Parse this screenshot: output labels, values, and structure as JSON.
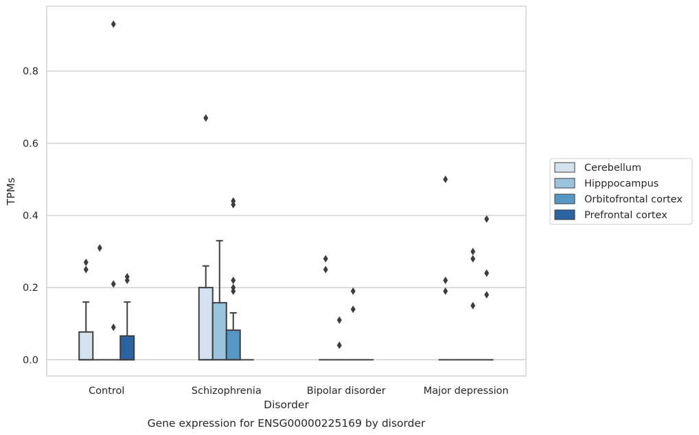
{
  "chart_data": {
    "type": "box",
    "title": "Gene expression for ENSG00000225169 by disorder",
    "xlabel": "Disorder",
    "ylabel": "TPMs",
    "categories": [
      "Control",
      "Schizophrenia",
      "Bipolar disorder",
      "Major depression"
    ],
    "ylim": [
      -0.045,
      0.98
    ],
    "yticks": [
      "0.0",
      "0.2",
      "0.4",
      "0.6",
      "0.8"
    ],
    "grid": "horizontal",
    "legend_position": "right",
    "series": [
      {
        "name": "Cerebellum",
        "color": "#d4e2f0",
        "boxes": [
          {
            "q1": 0.0,
            "median": 0.0,
            "q3": 0.077,
            "whisker_low": 0.0,
            "whisker_high": 0.16,
            "outliers": [
              0.27,
              0.25
            ]
          },
          {
            "q1": 0.0,
            "median": 0.0,
            "q3": 0.2,
            "whisker_low": 0.0,
            "whisker_high": 0.26,
            "outliers": [
              0.67
            ]
          },
          {
            "q1": 0.0,
            "median": 0.0,
            "q3": 0.0,
            "whisker_low": 0.0,
            "whisker_high": 0.0,
            "outliers": [
              0.28,
              0.25
            ]
          },
          {
            "q1": 0.0,
            "median": 0.0,
            "q3": 0.0,
            "whisker_low": 0.0,
            "whisker_high": 0.0,
            "outliers": [
              0.5,
              0.22,
              0.19
            ]
          }
        ]
      },
      {
        "name": "Hipppocampus",
        "color": "#9ac4dd",
        "boxes": [
          {
            "q1": 0.0,
            "median": 0.0,
            "q3": 0.0,
            "whisker_low": 0.0,
            "whisker_high": 0.0,
            "outliers": [
              0.31
            ]
          },
          {
            "q1": 0.0,
            "median": 0.0,
            "q3": 0.158,
            "whisker_low": 0.0,
            "whisker_high": 0.33,
            "outliers": []
          },
          {
            "q1": 0.0,
            "median": 0.0,
            "q3": 0.0,
            "whisker_low": 0.0,
            "whisker_high": 0.0,
            "outliers": [
              0.11,
              0.04
            ]
          },
          {
            "q1": 0.0,
            "median": 0.0,
            "q3": 0.0,
            "whisker_low": 0.0,
            "whisker_high": 0.0,
            "outliers": []
          }
        ]
      },
      {
        "name": "Orbitofrontal cortex",
        "color": "#5697c5",
        "boxes": [
          {
            "q1": 0.0,
            "median": 0.0,
            "q3": 0.0,
            "whisker_low": 0.0,
            "whisker_high": 0.0,
            "outliers": [
              0.93,
              0.21,
              0.09
            ]
          },
          {
            "q1": 0.0,
            "median": 0.0,
            "q3": 0.082,
            "whisker_low": 0.0,
            "whisker_high": 0.13,
            "outliers": [
              0.44,
              0.43,
              0.22,
              0.2,
              0.19
            ]
          },
          {
            "q1": 0.0,
            "median": 0.0,
            "q3": 0.0,
            "whisker_low": 0.0,
            "whisker_high": 0.0,
            "outliers": [
              0.19,
              0.14
            ]
          },
          {
            "q1": 0.0,
            "median": 0.0,
            "q3": 0.0,
            "whisker_low": 0.0,
            "whisker_high": 0.0,
            "outliers": [
              0.3,
              0.28,
              0.15
            ]
          }
        ]
      },
      {
        "name": "Prefrontal cortex",
        "color": "#2a64a3",
        "boxes": [
          {
            "q1": 0.0,
            "median": 0.0,
            "q3": 0.066,
            "whisker_low": 0.0,
            "whisker_high": 0.16,
            "outliers": [
              0.23,
              0.22
            ]
          },
          {
            "q1": 0.0,
            "median": 0.0,
            "q3": 0.0,
            "whisker_low": 0.0,
            "whisker_high": 0.0,
            "outliers": []
          },
          {
            "q1": 0.0,
            "median": 0.0,
            "q3": 0.0,
            "whisker_low": 0.0,
            "whisker_high": 0.0,
            "outliers": []
          },
          {
            "q1": 0.0,
            "median": 0.0,
            "q3": 0.0,
            "whisker_low": 0.0,
            "whisker_high": 0.0,
            "outliers": [
              0.39,
              0.24,
              0.18
            ]
          }
        ]
      }
    ]
  }
}
